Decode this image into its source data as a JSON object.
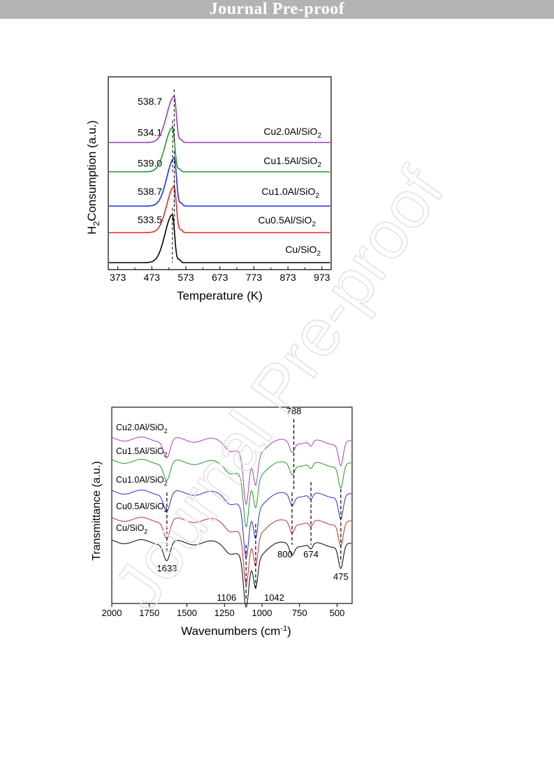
{
  "header": {
    "title": "Journal Pre-proof"
  },
  "watermark": {
    "text": "Journal Pre-proof",
    "color": "#e3e3e3"
  },
  "chart_data": [
    {
      "type": "line",
      "subtype": "tpr",
      "xlabel": "Temperature (K)",
      "ylabel_parts": {
        "pre": "H",
        "sub": "2",
        "post": "Consumption (a.u.)"
      },
      "xlim": [
        345,
        1000
      ],
      "x_ticks": [
        373,
        473,
        573,
        673,
        773,
        873,
        973
      ],
      "x_tick_labels": [
        "373",
        "473",
        "573",
        "673",
        "773",
        "873",
        "973"
      ],
      "series": [
        {
          "name": "Cu/SiO",
          "sub": "2",
          "color": "#000000",
          "peak_x": 533.5,
          "peak_label": "533.5",
          "peak_height": 0.78
        },
        {
          "name": "Cu0.5Al/SiO",
          "sub": "2",
          "color": "#e8262a",
          "peak_x": 538.7,
          "peak_label": "538.7",
          "peak_height": 0.75
        },
        {
          "name": "Cu1.0Al/SiO",
          "sub": "2",
          "color": "#1f2de6",
          "peak_x": 539.0,
          "peak_label": "539.0",
          "peak_height": 0.78
        },
        {
          "name": "Cu1.5Al/SiO",
          "sub": "2",
          "color": "#1e9a25",
          "peak_x": 534.1,
          "peak_label": "534.1",
          "peak_height": 0.72
        },
        {
          "name": "Cu2.0Al/SiO",
          "sub": "2",
          "color": "#9b3cb4",
          "peak_x": 538.7,
          "peak_label": "538.7",
          "peak_height": 0.75
        }
      ]
    },
    {
      "type": "line",
      "subtype": "ftir",
      "xlabel_parts": {
        "pre": "Wavenumbers (cm",
        "sup": "-1",
        "post": ")"
      },
      "ylabel": "Transmittance (a.u.)",
      "xlim": [
        2000,
        400
      ],
      "x_ticks": [
        2000,
        1750,
        1500,
        1250,
        1000,
        750,
        500
      ],
      "x_tick_labels": [
        "2000",
        "1750",
        "1500",
        "1250",
        "1000",
        "750",
        "500"
      ],
      "series": [
        {
          "name": "Cu/SiO",
          "sub": "2",
          "color": "#000000"
        },
        {
          "name": "Cu0.5Al/SiO",
          "sub": "2",
          "color": "#d9262a"
        },
        {
          "name": "Cu1.0Al/SiO",
          "sub": "2",
          "color": "#2a2ad6"
        },
        {
          "name": "Cu1.5Al/SiO",
          "sub": "2",
          "color": "#1e9a25"
        },
        {
          "name": "Cu2.0Al/SiO",
          "sub": "2",
          "color": "#a040c0"
        }
      ],
      "peak_labels": [
        {
          "x": 1633,
          "label": "1633"
        },
        {
          "x": 1106,
          "label": "1106"
        },
        {
          "x": 1042,
          "label": "1042"
        },
        {
          "x": 800,
          "label": "800"
        },
        {
          "x": 788,
          "label": "788"
        },
        {
          "x": 674,
          "label": "674"
        },
        {
          "x": 475,
          "label": "475"
        }
      ]
    }
  ]
}
